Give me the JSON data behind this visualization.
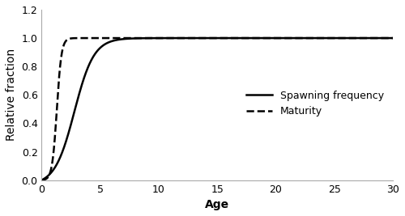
{
  "title": "",
  "xlabel": "Age",
  "ylabel": "Relative fraction",
  "xlim": [
    0,
    30
  ],
  "ylim": [
    0,
    1.2
  ],
  "yticks": [
    0,
    0.2,
    0.4,
    0.6,
    0.8,
    1.0,
    1.2
  ],
  "xticks": [
    0,
    5,
    10,
    15,
    20,
    25,
    30
  ],
  "spawning_label": "Spawning frequency",
  "maturity_label": "Maturity",
  "spawning_color": "#000000",
  "maturity_color": "#000000",
  "background_color": "#ffffff",
  "spawning_linestyle": "solid",
  "maturity_linestyle": "dashed",
  "linewidth": 1.8,
  "legend_fontsize": 9,
  "spawning_k": 1.2,
  "spawning_t0": 2.8,
  "maturity_k": 5.0,
  "maturity_t0": 1.3
}
